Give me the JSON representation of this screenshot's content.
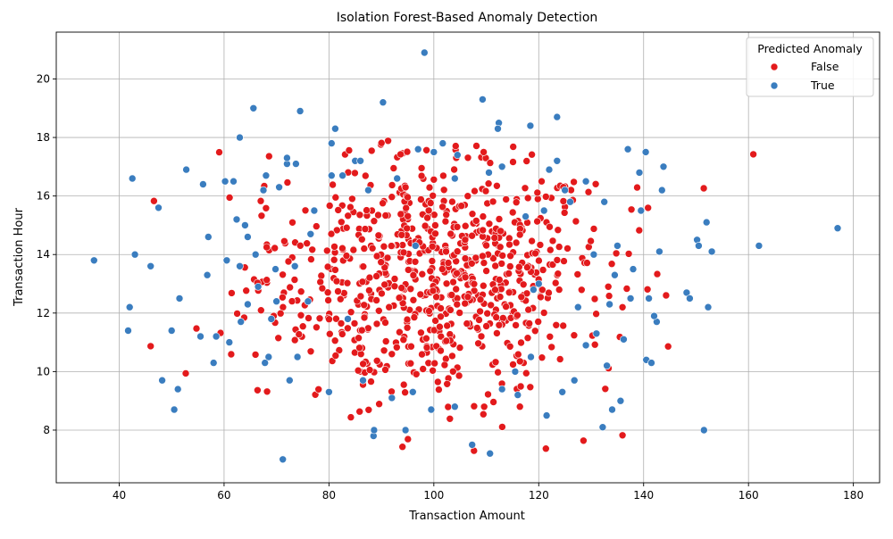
{
  "chart_data": {
    "type": "scatter",
    "title": "Isolation Forest-Based Anomaly Detection",
    "xlabel": "Transaction Amount",
    "ylabel": "Transaction Hour",
    "xlim": [
      28,
      185
    ],
    "ylim": [
      6.2,
      21.6
    ],
    "xticks": [
      40,
      60,
      80,
      100,
      120,
      140,
      160,
      180
    ],
    "yticks": [
      8,
      10,
      12,
      14,
      16,
      18,
      20
    ],
    "grid": true,
    "legend": {
      "title": "Predicted Anomaly",
      "placement": "top-right",
      "entries": [
        "False",
        "True"
      ]
    },
    "colors": {
      "False": "#e31a1c",
      "True": "#3a7dbf"
    },
    "normal_cluster": {
      "name": "False",
      "center_x": 100,
      "center_y": 13.2,
      "spread_x": 16,
      "spread_y": 2.1,
      "count": 780
    },
    "series": [
      {
        "name": "True",
        "points": [
          [
            35.2,
            13.8
          ],
          [
            42.5,
            16.6
          ],
          [
            43.0,
            14.0
          ],
          [
            41.7,
            11.4
          ],
          [
            42.0,
            12.2
          ],
          [
            46.0,
            13.6
          ],
          [
            47.5,
            15.6
          ],
          [
            48.2,
            9.7
          ],
          [
            50.5,
            8.7
          ],
          [
            51.2,
            9.4
          ],
          [
            50.0,
            11.4
          ],
          [
            52.8,
            16.9
          ],
          [
            51.5,
            12.5
          ],
          [
            56.0,
            16.4
          ],
          [
            55.5,
            11.2
          ],
          [
            56.8,
            13.3
          ],
          [
            57.0,
            14.6
          ],
          [
            58.0,
            10.3
          ],
          [
            60.2,
            16.5
          ],
          [
            61.8,
            16.5
          ],
          [
            63.0,
            18.0
          ],
          [
            65.6,
            19.0
          ],
          [
            62.4,
            15.2
          ],
          [
            64.5,
            14.6
          ],
          [
            64.0,
            15.0
          ],
          [
            61.0,
            11.0
          ],
          [
            66.0,
            14.0
          ],
          [
            67.5,
            16.2
          ],
          [
            68.0,
            16.7
          ],
          [
            70.5,
            16.3
          ],
          [
            72.0,
            17.1
          ],
          [
            72.0,
            17.3
          ],
          [
            73.7,
            17.1
          ],
          [
            74.5,
            18.9
          ],
          [
            71.2,
            7.0
          ],
          [
            80.5,
            16.7
          ],
          [
            80.5,
            17.8
          ],
          [
            81.2,
            18.3
          ],
          [
            85.0,
            17.2
          ],
          [
            86.0,
            17.2
          ],
          [
            88.5,
            7.8
          ],
          [
            88.6,
            8.0
          ],
          [
            90.3,
            19.2
          ],
          [
            94.6,
            8.0
          ],
          [
            98.2,
            20.9
          ],
          [
            100.0,
            17.5
          ],
          [
            101.7,
            17.8
          ],
          [
            107.3,
            7.5
          ],
          [
            110.7,
            7.2
          ],
          [
            109.3,
            19.3
          ],
          [
            112.4,
            18.5
          ],
          [
            112.2,
            18.3
          ],
          [
            118.4,
            18.4
          ],
          [
            121.5,
            8.5
          ],
          [
            123.5,
            18.7
          ],
          [
            123.5,
            17.2
          ],
          [
            126.8,
            9.7
          ],
          [
            132.2,
            8.1
          ],
          [
            134.0,
            8.7
          ],
          [
            135.6,
            9.0
          ],
          [
            137.0,
            17.6
          ],
          [
            139.2,
            16.8
          ],
          [
            140.4,
            17.5
          ],
          [
            143.5,
            16.2
          ],
          [
            143.8,
            17.0
          ],
          [
            148.2,
            12.7
          ],
          [
            148.8,
            12.5
          ],
          [
            150.2,
            14.5
          ],
          [
            150.5,
            14.3
          ],
          [
            152.0,
            15.1
          ],
          [
            151.5,
            8.0
          ],
          [
            152.3,
            12.2
          ],
          [
            153.0,
            14.1
          ],
          [
            162.0,
            14.3
          ],
          [
            177.0,
            14.9
          ],
          [
            130.5,
            14.0
          ],
          [
            127.5,
            12.2
          ],
          [
            125.0,
            16.2
          ],
          [
            133.0,
            10.2
          ],
          [
            136.2,
            11.1
          ],
          [
            140.5,
            10.4
          ],
          [
            141.5,
            10.3
          ],
          [
            137.5,
            12.5
          ],
          [
            141.0,
            12.5
          ],
          [
            142.5,
            11.7
          ],
          [
            142.0,
            11.9
          ],
          [
            135.0,
            14.3
          ],
          [
            138.0,
            13.5
          ],
          [
            143.0,
            14.1
          ],
          [
            139.5,
            15.5
          ],
          [
            70.0,
            12.4
          ],
          [
            69.0,
            11.8
          ],
          [
            68.5,
            10.5
          ],
          [
            69.8,
            13.5
          ],
          [
            73.5,
            13.6
          ],
          [
            74.0,
            10.5
          ],
          [
            72.5,
            9.7
          ],
          [
            80.0,
            9.3
          ],
          [
            83.6,
            11.8
          ],
          [
            76.5,
            14.7
          ],
          [
            116.0,
            9.2
          ],
          [
            115.5,
            10.0
          ],
          [
            118.5,
            10.5
          ],
          [
            119.0,
            12.8
          ],
          [
            117.5,
            15.3
          ],
          [
            122.0,
            16.9
          ],
          [
            120.0,
            13.0
          ],
          [
            96.5,
            14.3
          ],
          [
            104.0,
            16.6
          ],
          [
            110.5,
            16.8
          ],
          [
            66.5,
            12.9
          ],
          [
            67.8,
            10.3
          ],
          [
            63.2,
            11.7
          ],
          [
            63.0,
            13.6
          ],
          [
            60.5,
            13.8
          ],
          [
            58.5,
            11.2
          ],
          [
            64.5,
            12.3
          ],
          [
            76.0,
            12.4
          ],
          [
            77.2,
            15.5
          ],
          [
            82.6,
            16.7
          ],
          [
            87.5,
            16.2
          ],
          [
            93.0,
            16.6
          ],
          [
            97.0,
            17.6
          ],
          [
            104.5,
            17.4
          ],
          [
            113.0,
            17.0
          ],
          [
            126.0,
            15.8
          ],
          [
            129.0,
            16.5
          ],
          [
            132.5,
            15.8
          ],
          [
            121.0,
            15.5
          ],
          [
            86.5,
            9.7
          ],
          [
            92.0,
            9.1
          ],
          [
            96.0,
            9.3
          ],
          [
            99.5,
            8.7
          ],
          [
            104.0,
            8.8
          ],
          [
            113.0,
            9.4
          ],
          [
            124.5,
            9.3
          ],
          [
            129.0,
            10.9
          ],
          [
            131.0,
            11.3
          ],
          [
            133.5,
            12.3
          ],
          [
            134.5,
            13.3
          ]
        ]
      }
    ]
  }
}
